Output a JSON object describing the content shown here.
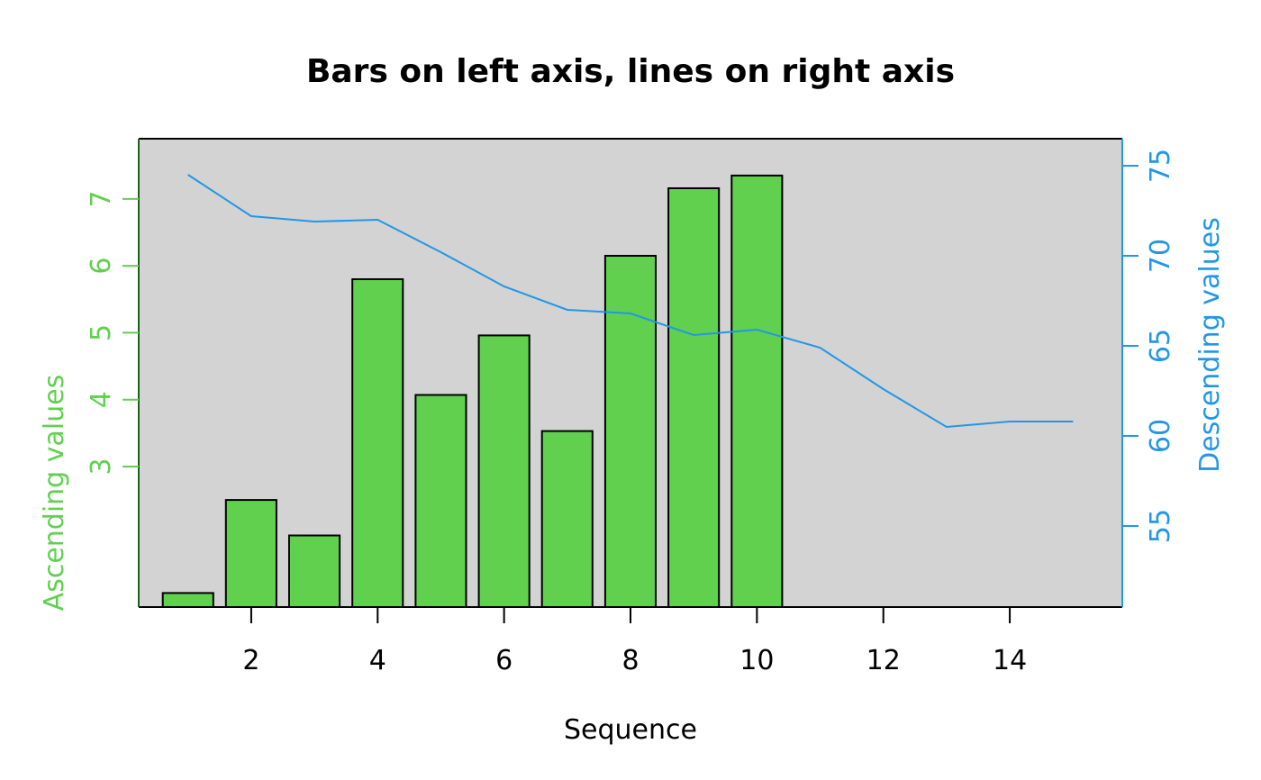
{
  "chart_data": {
    "type": "bar",
    "title": "Bars on left axis, lines on right axis",
    "xlabel": "Sequence",
    "x": [
      1,
      2,
      3,
      4,
      5,
      6,
      7,
      8,
      9,
      10,
      11,
      12,
      13,
      14,
      15
    ],
    "x_ticks": [
      2,
      4,
      6,
      8,
      10,
      12,
      14
    ],
    "xlim": [
      0.22,
      15.78
    ],
    "bars": {
      "axis": "left",
      "ylabel": "Ascending values",
      "x": [
        1,
        2,
        3,
        4,
        5,
        6,
        7,
        8,
        9,
        10
      ],
      "values": [
        1.11,
        2.5,
        1.97,
        5.8,
        4.07,
        4.96,
        3.53,
        6.15,
        7.16,
        7.35
      ],
      "color": "#61d04f",
      "ylim": [
        0.9,
        7.9
      ],
      "ticks": [
        3,
        4,
        5,
        6,
        7
      ]
    },
    "series": [
      {
        "axis": "right",
        "ylabel": "Descending values",
        "x": [
          1,
          2,
          3,
          4,
          5,
          6,
          7,
          8,
          9,
          10,
          11,
          12,
          13,
          14,
          15
        ],
        "values": [
          74.5,
          72.2,
          71.9,
          72.0,
          70.2,
          68.3,
          67.0,
          66.8,
          65.6,
          65.9,
          64.9,
          62.6,
          60.5,
          60.8,
          60.8
        ],
        "color": "#2297e6",
        "ylim": [
          50.5,
          76.5
        ],
        "ticks": [
          55,
          60,
          65,
          70,
          75
        ]
      }
    ],
    "background": "#d3d3d3",
    "grid": false
  }
}
